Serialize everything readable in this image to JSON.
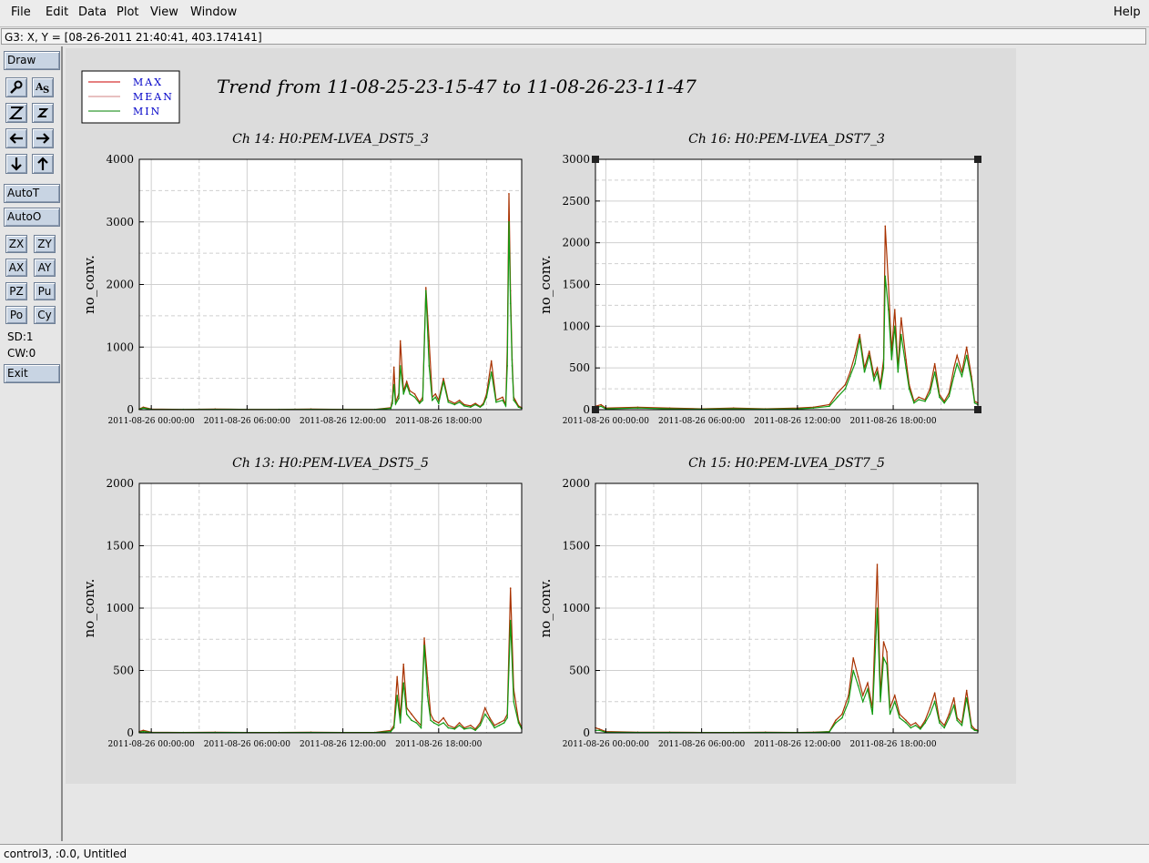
{
  "menubar": {
    "items": [
      {
        "label": "File"
      },
      {
        "label": "Edit"
      },
      {
        "label": "Data"
      },
      {
        "label": "Plot"
      },
      {
        "label": "View"
      },
      {
        "label": "Window"
      }
    ],
    "help": "Help"
  },
  "cursor_readout": "G3: X, Y = [08-26-2011 21:40:41, 403.174141]",
  "sidebar": {
    "draw": "Draw",
    "icon_buttons": [
      "magnifier-icon",
      "text-annotate-icon",
      "zoom-out-icon",
      "zoom-in-icon",
      "arrow-left-icon",
      "arrow-right-icon",
      "arrow-down-icon",
      "arrow-up-icon"
    ],
    "auto_t": "AutoT",
    "auto_o": "AutoO",
    "small_buttons": [
      "ZX",
      "ZY",
      "AX",
      "AY",
      "PZ",
      "Pu",
      "Po",
      "Cy"
    ],
    "sd": "SD:1",
    "cw": "CW:0",
    "exit": "Exit"
  },
  "plot_title": "Trend from 11-08-25-23-15-47 to 11-08-26-23-11-47",
  "legend": [
    {
      "label": "MAX",
      "color": "#cc0000"
    },
    {
      "label": "MEAN",
      "color": "#d08080"
    },
    {
      "label": "MIN",
      "color": "#008000"
    }
  ],
  "colors": {
    "max": "#a83200",
    "min": "#129a12"
  },
  "chart_data": [
    {
      "type": "line",
      "title": "Ch 14: H0:PEM-LVEA_DST5_3",
      "ylabel": "no_conv.",
      "ylim": [
        0,
        4000
      ],
      "yticks": [
        "0",
        "1000",
        "2000",
        "3000",
        "4000"
      ],
      "xticks": [
        "2011-08-26 00:00:00",
        "2011-08-26 06:00:00",
        "2011-08-26 12:00:00",
        "2011-08-26 18:00:00"
      ],
      "xlim_hours": [
        -0.75,
        23.2
      ],
      "series": [
        {
          "name": "MAX",
          "x": [
            -0.75,
            -0.5,
            0,
            2,
            4,
            6,
            8,
            10,
            12,
            14,
            15,
            15.1,
            15.2,
            15.3,
            15.5,
            15.6,
            15.8,
            16,
            16.2,
            16.5,
            16.8,
            17,
            17.2,
            17.4,
            17.6,
            17.8,
            18,
            18.3,
            18.6,
            19,
            19.3,
            19.6,
            20,
            20.3,
            20.6,
            20.8,
            21,
            21.3,
            21.6,
            22,
            22.2,
            22.3,
            22.4,
            22.5,
            22.6,
            22.7,
            22.8,
            23,
            23.2
          ],
          "y": [
            10,
            40,
            10,
            5,
            10,
            5,
            5,
            10,
            5,
            5,
            30,
            150,
            680,
            120,
            250,
            1100,
            300,
            450,
            300,
            250,
            120,
            200,
            1950,
            1100,
            200,
            250,
            150,
            500,
            150,
            100,
            150,
            80,
            60,
            100,
            50,
            100,
            250,
            780,
            150,
            200,
            80,
            1000,
            3450,
            1900,
            800,
            200,
            150,
            60,
            30
          ]
        },
        {
          "name": "MIN",
          "x": [
            -0.75,
            -0.5,
            0,
            2,
            4,
            6,
            8,
            10,
            12,
            14,
            15,
            15.1,
            15.2,
            15.3,
            15.5,
            15.6,
            15.8,
            16,
            16.2,
            16.5,
            16.8,
            17,
            17.2,
            17.4,
            17.6,
            17.8,
            18,
            18.3,
            18.6,
            19,
            19.3,
            19.6,
            20,
            20.3,
            20.6,
            20.8,
            21,
            21.3,
            21.6,
            22,
            22.2,
            22.3,
            22.4,
            22.5,
            22.6,
            22.7,
            22.8,
            23,
            23.2
          ],
          "y": [
            5,
            25,
            5,
            3,
            5,
            3,
            3,
            5,
            3,
            3,
            20,
            100,
            400,
            90,
            180,
            700,
            250,
            400,
            250,
            200,
            100,
            150,
            1900,
            700,
            150,
            200,
            100,
            450,
            120,
            80,
            120,
            60,
            40,
            80,
            40,
            80,
            200,
            600,
            120,
            150,
            60,
            700,
            3000,
            1700,
            700,
            150,
            120,
            40,
            20
          ]
        }
      ]
    },
    {
      "type": "line",
      "title": "Ch 16: H0:PEM-LVEA_DST7_3",
      "ylabel": "no_conv.",
      "ylim": [
        0,
        3000
      ],
      "yticks": [
        "0",
        "500",
        "1000",
        "1500",
        "2000",
        "2500",
        "3000"
      ],
      "xticks": [
        "2011-08-26 00:00:00",
        "2011-08-26 06:00:00",
        "2011-08-26 12:00:00",
        "2011-08-26 18:00:00"
      ],
      "xlim_hours": [
        -0.65,
        23.3
      ],
      "series": [
        {
          "name": "MAX",
          "x": [
            -0.65,
            -0.3,
            0,
            2,
            4,
            6,
            8,
            10,
            12,
            13,
            14,
            14.5,
            15,
            15.3,
            15.6,
            15.9,
            16.2,
            16.5,
            16.8,
            17,
            17.2,
            17.4,
            17.5,
            17.7,
            17.9,
            18.1,
            18.3,
            18.5,
            18.8,
            19,
            19.3,
            19.6,
            20,
            20.3,
            20.6,
            20.9,
            21.2,
            21.5,
            21.8,
            22,
            22.3,
            22.6,
            22.9,
            23.1,
            23.3
          ],
          "y": [
            40,
            60,
            20,
            30,
            20,
            10,
            20,
            10,
            20,
            30,
            60,
            200,
            300,
            450,
            650,
            900,
            500,
            700,
            400,
            500,
            300,
            600,
            2200,
            1500,
            700,
            1200,
            500,
            1100,
            600,
            300,
            100,
            150,
            120,
            250,
            550,
            180,
            100,
            200,
            500,
            650,
            450,
            750,
            400,
            100,
            80
          ]
        },
        {
          "name": "MIN",
          "x": [
            -0.65,
            -0.3,
            0,
            2,
            4,
            6,
            8,
            10,
            12,
            13,
            14,
            14.5,
            15,
            15.3,
            15.6,
            15.9,
            16.2,
            16.5,
            16.8,
            17,
            17.2,
            17.4,
            17.5,
            17.7,
            17.9,
            18.1,
            18.3,
            18.5,
            18.8,
            19,
            19.3,
            19.6,
            20,
            20.3,
            20.6,
            20.9,
            21.2,
            21.5,
            21.8,
            22,
            22.3,
            22.6,
            22.9,
            23.1,
            23.3
          ],
          "y": [
            20,
            40,
            10,
            20,
            10,
            5,
            10,
            5,
            10,
            20,
            40,
            150,
            250,
            400,
            550,
            850,
            450,
            650,
            350,
            450,
            250,
            500,
            1600,
            1200,
            600,
            1000,
            450,
            900,
            500,
            250,
            80,
            120,
            100,
            200,
            450,
            150,
            80,
            160,
            400,
            550,
            400,
            650,
            350,
            80,
            60
          ]
        }
      ]
    },
    {
      "type": "line",
      "title": "Ch 13: H0:PEM-LVEA_DST5_5",
      "ylabel": "no_conv.",
      "ylim": [
        0,
        2000
      ],
      "yticks": [
        "0",
        "500",
        "1000",
        "1500",
        "2000"
      ],
      "xticks": [
        "2011-08-26 00:00:00",
        "2011-08-26 06:00:00",
        "2011-08-26 12:00:00",
        "2011-08-26 18:00:00"
      ],
      "xlim_hours": [
        -0.75,
        23.2
      ],
      "series": [
        {
          "name": "MAX",
          "x": [
            -0.75,
            -0.5,
            0,
            2,
            4,
            6,
            8,
            10,
            12,
            14,
            15,
            15.2,
            15.4,
            15.6,
            15.8,
            16,
            16.3,
            16.6,
            16.9,
            17.1,
            17.3,
            17.5,
            17.7,
            18,
            18.3,
            18.6,
            19,
            19.3,
            19.6,
            20,
            20.3,
            20.6,
            20.9,
            21.2,
            21.5,
            21.8,
            22.1,
            22.3,
            22.5,
            22.7,
            23,
            23.2
          ],
          "y": [
            10,
            20,
            5,
            3,
            5,
            3,
            3,
            5,
            3,
            3,
            20,
            60,
            450,
            120,
            550,
            200,
            150,
            100,
            60,
            760,
            440,
            150,
            100,
            80,
            120,
            60,
            40,
            80,
            40,
            60,
            30,
            80,
            200,
            120,
            60,
            80,
            100,
            150,
            1160,
            350,
            100,
            40
          ]
        },
        {
          "name": "MIN",
          "x": [
            -0.75,
            -0.5,
            0,
            2,
            4,
            6,
            8,
            10,
            12,
            14,
            15,
            15.2,
            15.4,
            15.6,
            15.8,
            16,
            16.3,
            16.6,
            16.9,
            17.1,
            17.3,
            17.5,
            17.7,
            18,
            18.3,
            18.6,
            19,
            19.3,
            19.6,
            20,
            20.3,
            20.6,
            20.9,
            21.2,
            21.5,
            21.8,
            22.1,
            22.3,
            22.5,
            22.7,
            23,
            23.2
          ],
          "y": [
            5,
            10,
            3,
            2,
            3,
            2,
            2,
            3,
            2,
            2,
            10,
            40,
            300,
            80,
            400,
            150,
            100,
            80,
            40,
            700,
            300,
            100,
            80,
            60,
            80,
            40,
            30,
            60,
            30,
            40,
            20,
            60,
            150,
            100,
            40,
            60,
            80,
            120,
            900,
            250,
            80,
            30
          ]
        }
      ]
    },
    {
      "type": "line",
      "title": "Ch 15: H0:PEM-LVEA_DST7_5",
      "ylabel": "no_conv.",
      "ylim": [
        0,
        2000
      ],
      "yticks": [
        "0",
        "500",
        "1000",
        "1500",
        "2000"
      ],
      "xticks": [
        "2011-08-26 00:00:00",
        "2011-08-26 06:00:00",
        "2011-08-26 12:00:00",
        "2011-08-26 18:00:00"
      ],
      "xlim_hours": [
        -0.65,
        23.3
      ],
      "series": [
        {
          "name": "MAX",
          "x": [
            -0.65,
            -0.4,
            0,
            2,
            4,
            6,
            8,
            10,
            12,
            13,
            14,
            14.4,
            14.8,
            15.2,
            15.5,
            15.8,
            16.1,
            16.4,
            16.7,
            17,
            17.2,
            17.4,
            17.6,
            17.8,
            18.1,
            18.4,
            18.8,
            19.1,
            19.4,
            19.7,
            20,
            20.3,
            20.6,
            20.9,
            21.2,
            21.5,
            21.8,
            22,
            22.3,
            22.6,
            22.9,
            23.1,
            23.3
          ],
          "y": [
            40,
            30,
            10,
            5,
            5,
            3,
            3,
            5,
            3,
            5,
            10,
            100,
            150,
            300,
            600,
            450,
            300,
            400,
            200,
            1350,
            300,
            730,
            650,
            200,
            300,
            150,
            100,
            60,
            80,
            40,
            100,
            200,
            320,
            100,
            60,
            150,
            280,
            120,
            80,
            340,
            60,
            30,
            20
          ]
        },
        {
          "name": "MIN",
          "x": [
            -0.65,
            -0.4,
            0,
            2,
            4,
            6,
            8,
            10,
            12,
            13,
            14,
            14.4,
            14.8,
            15.2,
            15.5,
            15.8,
            16.1,
            16.4,
            16.7,
            17,
            17.2,
            17.4,
            17.6,
            17.8,
            18.1,
            18.4,
            18.8,
            19.1,
            19.4,
            19.7,
            20,
            20.3,
            20.6,
            20.9,
            21.2,
            21.5,
            21.8,
            22,
            22.3,
            22.6,
            22.9,
            23.1,
            23.3
          ],
          "y": [
            20,
            20,
            5,
            3,
            3,
            2,
            2,
            3,
            2,
            3,
            8,
            80,
            120,
            250,
            500,
            380,
            250,
            350,
            150,
            1000,
            250,
            600,
            550,
            150,
            250,
            120,
            80,
            40,
            60,
            30,
            80,
            150,
            250,
            80,
            40,
            120,
            220,
            100,
            60,
            280,
            40,
            20,
            15
          ]
        }
      ]
    }
  ],
  "status_bottom": "control3, :0.0, Untitled"
}
